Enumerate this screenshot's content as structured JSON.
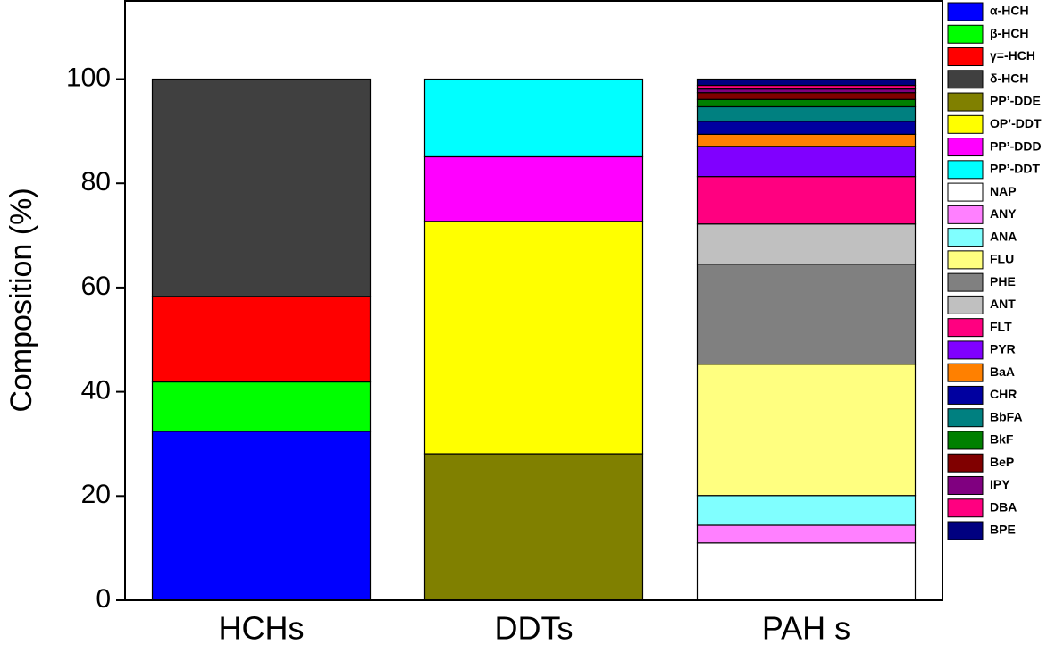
{
  "chart_data": {
    "type": "stacked_bar",
    "y_label": "Composition (%)",
    "categories": [
      "HCHs",
      "DDTs",
      "PAH s"
    ],
    "ylim": [
      0,
      115
    ],
    "yticks": [
      0,
      20,
      40,
      60,
      80,
      100
    ],
    "series": [
      {
        "name": "α-HCH",
        "color": "#0000ff",
        "values": [
          32.4,
          null,
          null
        ]
      },
      {
        "name": "β-HCH",
        "color": "#00ff00",
        "values": [
          9.5,
          null,
          null
        ]
      },
      {
        "name": "γ=-HCH",
        "color": "#ff0000",
        "values": [
          16.4,
          null,
          null
        ]
      },
      {
        "name": "δ-HCH",
        "color": "#404040",
        "values": [
          41.7,
          null,
          null
        ]
      },
      {
        "name": "PP’-DDE",
        "color": "#808000",
        "values": [
          null,
          28.1,
          null
        ]
      },
      {
        "name": "OP’-DDT",
        "color": "#ffff00",
        "values": [
          null,
          44.6,
          null
        ]
      },
      {
        "name": "PP’-DDD",
        "color": "#ff00ff",
        "values": [
          null,
          12.4,
          null
        ]
      },
      {
        "name": "PP’-DDT",
        "color": "#00ffff",
        "values": [
          null,
          14.9,
          null
        ]
      },
      {
        "name": "NAP",
        "color": "#ffffff",
        "values": [
          null,
          null,
          11.0
        ]
      },
      {
        "name": "ANY",
        "color": "#ff80ff",
        "values": [
          null,
          null,
          3.4
        ]
      },
      {
        "name": "ANA",
        "color": "#80ffff",
        "values": [
          null,
          null,
          5.7
        ]
      },
      {
        "name": "FLU",
        "color": "#ffff80",
        "values": [
          null,
          null,
          25.2
        ]
      },
      {
        "name": "PHE",
        "color": "#808080",
        "values": [
          null,
          null,
          19.2
        ]
      },
      {
        "name": "ANT",
        "color": "#c0c0c0",
        "values": [
          null,
          null,
          7.7
        ]
      },
      {
        "name": "FLT",
        "color": "#ff0080",
        "values": [
          null,
          null,
          9.1
        ]
      },
      {
        "name": "PYR",
        "color": "#8000ff",
        "values": [
          null,
          null,
          5.8
        ]
      },
      {
        "name": "BaA",
        "color": "#ff8000",
        "values": [
          null,
          null,
          2.3
        ]
      },
      {
        "name": "CHR",
        "color": "#0000a0",
        "values": [
          null,
          null,
          2.5
        ]
      },
      {
        "name": "BbFA",
        "color": "#008080",
        "values": [
          null,
          null,
          2.8
        ]
      },
      {
        "name": "BkF",
        "color": "#008000",
        "values": [
          null,
          null,
          1.4
        ]
      },
      {
        "name": "BeP",
        "color": "#800000",
        "values": [
          null,
          null,
          1.3
        ]
      },
      {
        "name": "IPY",
        "color": "#800080",
        "values": [
          null,
          null,
          0.7
        ]
      },
      {
        "name": "DBA",
        "color": "#ff0080",
        "values": [
          null,
          null,
          0.7
        ]
      },
      {
        "name": "BPE",
        "color": "#000080",
        "values": [
          null,
          null,
          1.2
        ]
      }
    ]
  }
}
